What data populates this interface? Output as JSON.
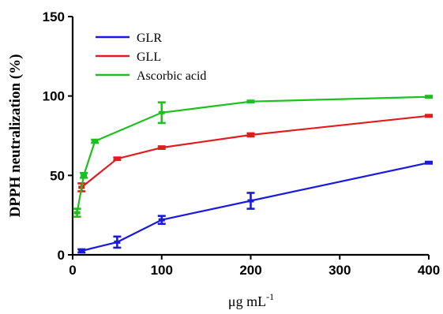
{
  "chart_data": {
    "type": "line",
    "xlabel": "μg mL",
    "xlabel_sup": "-1",
    "ylabel": "DPPH neutralization (%)",
    "xlim": [
      0,
      400
    ],
    "ylim": [
      0,
      150
    ],
    "xticks": [
      "0",
      "100",
      "200",
      "300",
      "400"
    ],
    "yticks": [
      "0",
      "50",
      "100",
      "150"
    ],
    "grid": false,
    "legend_position": "top-left",
    "series": [
      {
        "name": "GLR",
        "color": "#1a1adf",
        "x": [
          10,
          50,
          100,
          200,
          400
        ],
        "y": [
          2.5,
          8,
          22,
          34,
          58
        ],
        "err": [
          1,
          3.5,
          2.5,
          5,
          0.6
        ]
      },
      {
        "name": "GLL",
        "color": "#e01c1c",
        "x": [
          10,
          50,
          100,
          200,
          400
        ],
        "y": [
          42.5,
          60.5,
          67.5,
          75.5,
          87.5
        ],
        "err": [
          2.5,
          0.8,
          0.8,
          1,
          0.6
        ]
      },
      {
        "name": "Ascorbic acid",
        "color": "#1fbf1f",
        "x": [
          5,
          12.5,
          25,
          100,
          200,
          400
        ],
        "y": [
          26.5,
          50,
          71.5,
          89.5,
          96.5,
          99.5
        ],
        "err": [
          2.5,
          1.5,
          1,
          6.5,
          0.6,
          0.6
        ]
      }
    ]
  }
}
